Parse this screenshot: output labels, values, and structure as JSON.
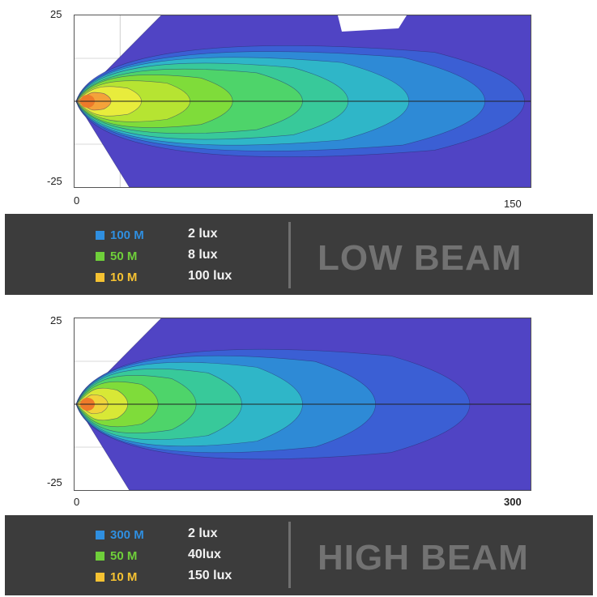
{
  "chart_data": [
    {
      "type": "heatmap",
      "name": "low-beam",
      "x_ticks": [
        "0",
        "150"
      ],
      "y_ticks": [
        "25",
        "-25"
      ],
      "xlim": [
        0,
        150
      ],
      "ylim": [
        -25,
        25
      ],
      "legend": [
        {
          "distance": "100 M",
          "lux": "2 lux",
          "color": "#2f8fe0"
        },
        {
          "distance": "50 M",
          "lux": "8 lux",
          "color": "#6fcf3a"
        },
        {
          "distance": "10 M",
          "lux": "100 lux",
          "color": "#f5c232"
        }
      ],
      "title": "LOW BEAM",
      "contour_reach_x": [
        150,
        148,
        135,
        110,
        90,
        75,
        52,
        38,
        22,
        12
      ],
      "contour_colors": [
        "#5044c4",
        "#3b5fd4",
        "#2e8ad6",
        "#2fb6c8",
        "#38c99a",
        "#4ed46a",
        "#7fdc3a",
        "#b6e432",
        "#e8ec3c",
        "#f4a23a"
      ]
    },
    {
      "type": "heatmap",
      "name": "high-beam",
      "x_ticks": [
        "0",
        "300"
      ],
      "y_ticks": [
        "25",
        "-25"
      ],
      "xlim": [
        0,
        300
      ],
      "ylim": [
        -25,
        25
      ],
      "legend": [
        {
          "distance": "300 M",
          "lux": "2 lux",
          "color": "#2f8fe0"
        },
        {
          "distance": "50 M",
          "lux": "40lux",
          "color": "#6fcf3a"
        },
        {
          "distance": "10 M",
          "lux": "150 lux",
          "color": "#f5c232"
        }
      ],
      "title": "HIGH BEAM",
      "contour_reach_x": [
        300,
        260,
        198,
        150,
        110,
        80,
        55,
        35,
        22
      ],
      "contour_colors": [
        "#5044c4",
        "#3b5fd4",
        "#2e8ad6",
        "#2fb6c8",
        "#38c99a",
        "#4ed46a",
        "#7fdc3a",
        "#d8e836",
        "#f0d43a"
      ]
    }
  ]
}
